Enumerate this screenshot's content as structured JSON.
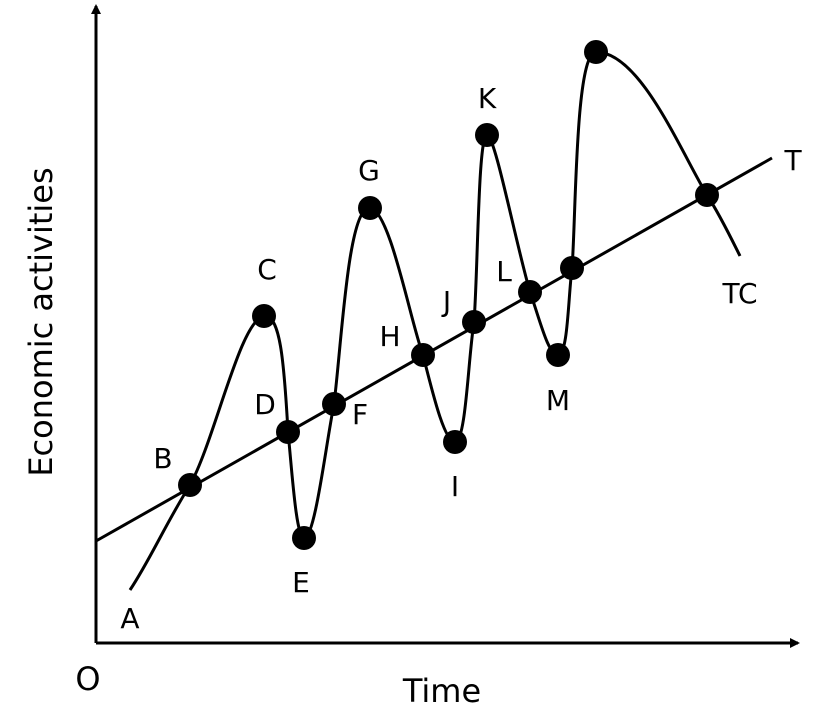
{
  "axes": {
    "origin_label": "O",
    "x_title": "Time",
    "y_title": "Economic activities"
  },
  "trend_label": "T",
  "cycle_label": "TC",
  "points": {
    "A": "A",
    "B": "B",
    "C": "C",
    "D": "D",
    "E": "E",
    "F": "F",
    "G": "G",
    "H": "H",
    "I": "I",
    "J": "J",
    "K": "K",
    "L": "L",
    "M": "M"
  },
  "colors": {
    "ink": "#000000",
    "background": "#ffffff"
  }
}
